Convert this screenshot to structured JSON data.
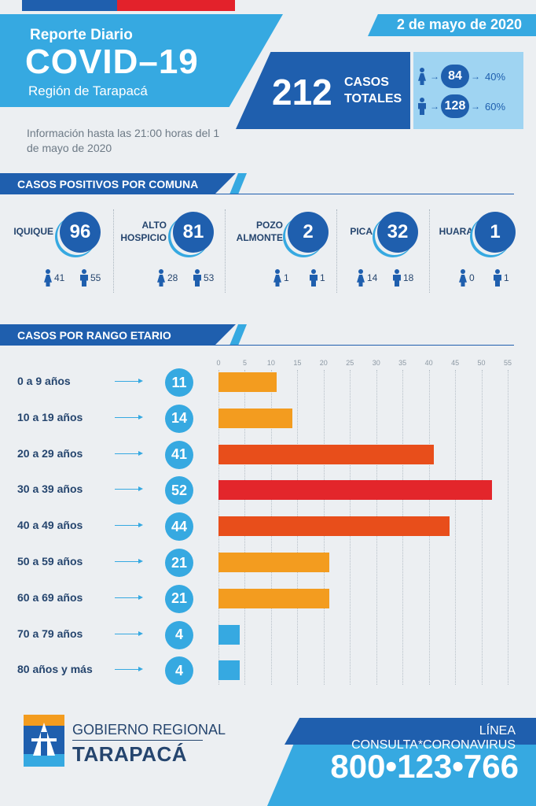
{
  "header": {
    "report_label": "Reporte Diario",
    "title": "COVID–19",
    "region": "Región de Tarapacá",
    "date": "2 de mayo de 2020",
    "info": "Información hasta las 21:00 horas del 1 de mayo de 2020"
  },
  "totals": {
    "number": "212",
    "label_line1": "CASOS",
    "label_line2": "TOTALES",
    "women": {
      "count": "84",
      "pct": "40%"
    },
    "men": {
      "count": "128",
      "pct": "60%"
    }
  },
  "comunas_section": {
    "title": "CASOS POSITIVOS POR COMUNA"
  },
  "comunas": [
    {
      "name_line1": "IQUIQUE",
      "name_line2": "",
      "total": "96",
      "women": "41",
      "men": "55"
    },
    {
      "name_line1": "ALTO",
      "name_line2": "HOSPICIO",
      "total": "81",
      "women": "28",
      "men": "53"
    },
    {
      "name_line1": "POZO",
      "name_line2": "ALMONTE",
      "total": "2",
      "women": "1",
      "men": "1"
    },
    {
      "name_line1": "PICA",
      "name_line2": "",
      "total": "32",
      "women": "14",
      "men": "18"
    },
    {
      "name_line1": "HUARA",
      "name_line2": "",
      "total": "1",
      "women": "0",
      "men": "1"
    }
  ],
  "age_section": {
    "title": "CASOS POR RANGO ETARIO"
  },
  "chart_data": {
    "type": "bar",
    "orientation": "horizontal",
    "title": "CASOS POR RANGO ETARIO",
    "categories": [
      "0 a 9 años",
      "10 a 19 años",
      "20 a 29 años",
      "30 a 39 años",
      "40 a 49 años",
      "50 a 59 años",
      "60 a 69 años",
      "70 a 79 años",
      "80 años y más"
    ],
    "values": [
      11,
      14,
      41,
      52,
      44,
      21,
      21,
      4,
      4
    ],
    "bar_colors": [
      "#f39c1f",
      "#f39c1f",
      "#e84e1b",
      "#e3262b",
      "#e84e1b",
      "#f39c1f",
      "#f39c1f",
      "#36a9e1",
      "#36a9e1"
    ],
    "xlim": [
      0,
      55
    ],
    "xticks": [
      0,
      5,
      10,
      15,
      20,
      25,
      30,
      35,
      40,
      45,
      50,
      55
    ],
    "grid": true
  },
  "footer": {
    "gov_line1": "GOBIERNO REGIONAL",
    "gov_line2": "TARAPACÁ",
    "hotline_label": "LÍNEA CONSULTA*CORONAVIRUS",
    "phone": "800•123•766"
  },
  "colors": {
    "dark_blue": "#1f5fae",
    "light_blue": "#36a9e1",
    "red": "#e3222b",
    "background": "#eceff2"
  }
}
